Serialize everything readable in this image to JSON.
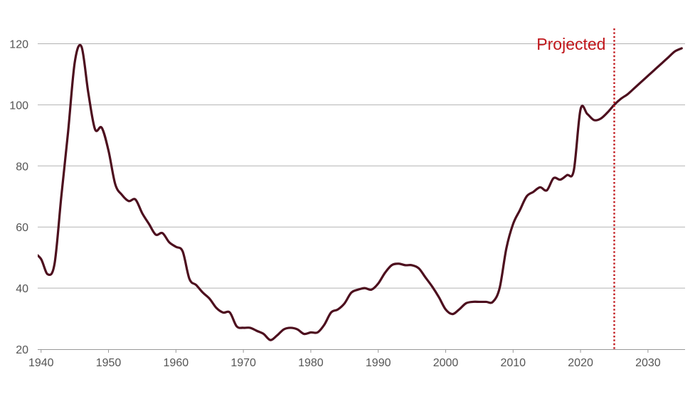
{
  "colors": {
    "line": "#4d0f1e",
    "projection": "#c0161b",
    "grid": "#b3b3b3",
    "tick_text": "#555555"
  },
  "chart_data": {
    "type": "line",
    "title": "",
    "xlabel": "",
    "ylabel": "",
    "xlim": [
      1939.5,
      2035.5
    ],
    "ylim": [
      20,
      125
    ],
    "x_ticks": [
      1940,
      1950,
      1960,
      1970,
      1980,
      1990,
      2000,
      2010,
      2020,
      2030
    ],
    "y_ticks": [
      20,
      40,
      60,
      80,
      100,
      120
    ],
    "x_tick_labels": [
      "1940",
      "1950",
      "1960",
      "1970",
      "1980",
      "1990",
      "2000",
      "2010",
      "2020",
      "2030"
    ],
    "y_tick_labels": [
      "20",
      "40",
      "60",
      "80",
      "100",
      "120"
    ],
    "grid": "horizontal",
    "annotations": [
      {
        "type": "vertical-dotted-line",
        "x": 2025,
        "label": "Projected"
      }
    ],
    "series": [
      {
        "x": [
          1939,
          1940,
          1941,
          1942,
          1943,
          1944,
          1945,
          1946,
          1947,
          1948,
          1949,
          1950,
          1951,
          1952,
          1953,
          1954,
          1955,
          1956,
          1957,
          1958,
          1959,
          1960,
          1961,
          1962,
          1963,
          1964,
          1965,
          1966,
          1967,
          1968,
          1969,
          1970,
          1971,
          1972,
          1973,
          1974,
          1975,
          1976,
          1977,
          1978,
          1979,
          1980,
          1981,
          1982,
          1983,
          1984,
          1985,
          1986,
          1987,
          1988,
          1989,
          1990,
          1991,
          1992,
          1993,
          1994,
          1995,
          1996,
          1997,
          1998,
          1999,
          2000,
          2001,
          2002,
          2003,
          2004,
          2005,
          2006,
          2007,
          2008,
          2009,
          2010,
          2011,
          2012,
          2013,
          2014,
          2015,
          2016,
          2017,
          2018,
          2019,
          2020,
          2021,
          2022,
          2023,
          2024,
          2025,
          2026,
          2027,
          2028,
          2029,
          2030,
          2031,
          2032,
          2033,
          2034,
          2035
        ],
        "values": [
          51.5,
          49.5,
          44.5,
          48,
          70,
          91,
          114,
          119,
          104,
          92,
          92.5,
          85,
          74,
          70.5,
          68.5,
          69,
          64.5,
          61,
          57.5,
          58,
          55,
          53.5,
          52,
          43,
          41,
          38.5,
          36.5,
          33.5,
          32,
          32,
          27.5,
          27,
          27,
          26,
          25,
          23,
          24.5,
          26.5,
          27,
          26.5,
          25,
          25.5,
          25.5,
          28,
          32,
          33,
          35,
          38.5,
          39.5,
          40,
          39.5,
          41.5,
          45,
          47.5,
          48,
          47.5,
          47.5,
          46.5,
          43.5,
          40.5,
          37,
          33,
          31.5,
          33,
          35,
          35.5,
          35.5,
          35.5,
          35.5,
          40,
          53,
          61,
          65.5,
          70,
          71.5,
          73,
          72,
          76,
          75.5,
          77,
          78.5,
          98.5,
          97,
          95,
          95.5,
          97.5,
          100,
          102,
          103.5,
          105.5,
          107.5,
          109.5,
          111.5,
          113.5,
          115.5,
          117.5,
          118.5
        ]
      }
    ]
  }
}
